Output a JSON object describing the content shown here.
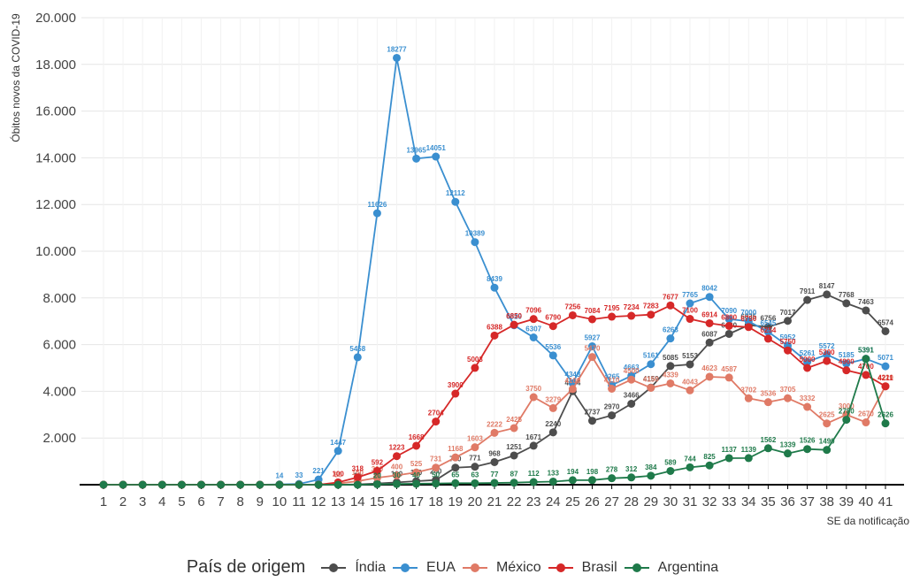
{
  "chart_data": {
    "type": "line",
    "xlabel": "SE da notificação",
    "ylabel": "Óbitos novos da COVID-19",
    "ylim": [
      0,
      20000
    ],
    "yticks": [
      "2.000",
      "4.000",
      "6.000",
      "8.000",
      "10.000",
      "12.000",
      "14.000",
      "16.000",
      "18.000",
      "20.000"
    ],
    "ytick_values": [
      2000,
      4000,
      6000,
      8000,
      10000,
      12000,
      14000,
      16000,
      18000,
      20000
    ],
    "x": [
      1,
      2,
      3,
      4,
      5,
      6,
      7,
      8,
      9,
      10,
      11,
      12,
      13,
      14,
      15,
      16,
      17,
      18,
      19,
      20,
      21,
      22,
      23,
      24,
      25,
      26,
      27,
      28,
      29,
      30,
      31,
      32,
      33,
      34,
      35,
      36,
      37,
      38,
      39,
      40,
      41
    ],
    "grid": true,
    "legend_title": "País de origem",
    "legend_position": "bottom",
    "series": [
      {
        "name": "Índia",
        "color": "#4d4d4d",
        "values": [
          0,
          0,
          0,
          0,
          0,
          0,
          0,
          0,
          0,
          0,
          0,
          0,
          0,
          10,
          50,
          100,
          150,
          200,
          730,
          771,
          968,
          1251,
          1671,
          2240,
          4004,
          2737,
          2970,
          3466,
          4159,
          5085,
          5153,
          6087,
          6460,
          6835,
          6756,
          7017,
          7911,
          8147,
          7768,
          7463,
          6574
        ]
      },
      {
        "name": "EUA",
        "color": "#3a8fd0",
        "values": [
          0,
          0,
          0,
          0,
          0,
          0,
          0,
          0,
          0,
          14,
          33,
          221,
          1447,
          5458,
          11626,
          18277,
          13965,
          14051,
          12112,
          10389,
          8439,
          6829,
          6307,
          5536,
          4348,
          5927,
          4265,
          4663,
          5161,
          6263,
          7765,
          8042,
          7090,
          7000,
          6545,
          5952,
          5261,
          5572,
          5185,
          5391,
          5071
        ]
      },
      {
        "name": "México",
        "color": "#e07a66",
        "values": [
          0,
          0,
          0,
          0,
          0,
          0,
          0,
          0,
          0,
          0,
          0,
          5,
          50,
          150,
          300,
          400,
          525,
          731,
          1168,
          1603,
          2222,
          2425,
          3750,
          3279,
          4100,
          5470,
          4110,
          4500,
          4150,
          4339,
          4043,
          4623,
          4587,
          3702,
          3536,
          3705,
          3332,
          2625,
          3000,
          2670,
          4220
        ]
      },
      {
        "name": "Brasil",
        "color": "#d62828",
        "values": [
          0,
          0,
          0,
          0,
          0,
          0,
          0,
          0,
          0,
          0,
          0,
          0,
          100,
          318,
          592,
          1223,
          1668,
          2704,
          3900,
          5003,
          6388,
          6850,
          7096,
          6790,
          7256,
          7084,
          7195,
          7234,
          7283,
          7677,
          7100,
          6914,
          6800,
          6750,
          6254,
          5750,
          5000,
          5300,
          4900,
          4700,
          4211
        ]
      },
      {
        "name": "Argentina",
        "color": "#1f7a4a",
        "values": [
          0,
          0,
          0,
          0,
          0,
          0,
          0,
          0,
          0,
          0,
          0,
          0,
          0,
          0,
          20,
          30,
          40,
          50,
          65,
          63,
          77,
          87,
          112,
          133,
          194,
          198,
          278,
          312,
          384,
          589,
          744,
          825,
          1137,
          1139,
          1562,
          1339,
          1526,
          1490,
          2780,
          5391,
          2626
        ]
      }
    ]
  }
}
